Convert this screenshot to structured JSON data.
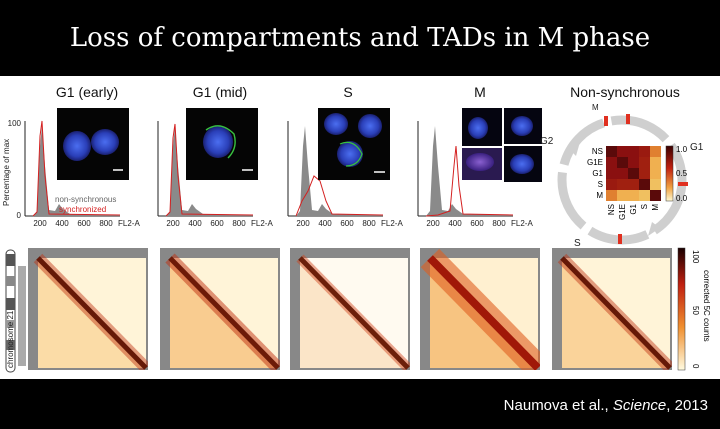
{
  "title": "Loss of compartments and TADs in M phase",
  "citation": {
    "authors": "Naumova et al.,",
    "journal": "Science",
    "year": ", 2013"
  },
  "phases": [
    "G1 (early)",
    "G1 (mid)",
    "S",
    "M",
    "Non-synchronous"
  ],
  "histogram": {
    "ylabel": "Percentage of max",
    "ytick": "100",
    "ytick0": "0",
    "xticks": [
      "200",
      "400",
      "600",
      "800"
    ],
    "xlabel": "FL2-A",
    "legend_nonsync": "non-synchronous",
    "legend_sync": "synchronized"
  },
  "cycle": {
    "labels": [
      "M",
      "G2",
      "G1",
      "S"
    ],
    "matrix_rows": [
      "NS",
      "G1E",
      "G1",
      "S",
      "M"
    ],
    "matrix_cols": [
      "NS",
      "G1E",
      "G1",
      "S",
      "M"
    ],
    "colorbar_ticks": [
      "1.0",
      "0.5",
      "0.0"
    ]
  },
  "heatmaps": {
    "chrom_label": "chromosome 21",
    "colorbar_label": "corrected 5C counts",
    "colorbar_ticks": [
      "100",
      "50",
      "0"
    ]
  },
  "colors": {
    "nonsync": "#8a8a8a",
    "sync": "#d42020",
    "cycle_arrow": "#cfcfcf",
    "cycle_mark": "#e03020"
  }
}
